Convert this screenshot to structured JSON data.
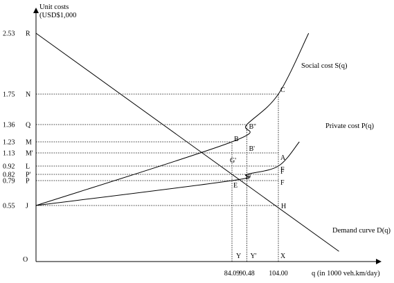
{
  "chart_data": {
    "type": "line",
    "title": "",
    "ylabel_line1": "Unit costs",
    "ylabel_line2": "(USD$1,000",
    "xlabel": "q (in 1000 veh.km/day)",
    "origin_label": "O",
    "ylim": [
      0,
      2.8
    ],
    "xlim": [
      0,
      130
    ],
    "x_ticks": [
      {
        "value": 84.09,
        "label": "84.09"
      },
      {
        "value": 90.48,
        "label": "90.48"
      },
      {
        "value": 104.0,
        "label": "104.00"
      }
    ],
    "y_ticks": [
      {
        "value": 2.53,
        "number": "2.53",
        "letter": "R"
      },
      {
        "value": 1.75,
        "number": "1.75",
        "letter": "N"
      },
      {
        "value": 1.36,
        "number": "1.36",
        "letter": "Q"
      },
      {
        "value": 1.23,
        "number": "1.23",
        "letter": "M"
      },
      {
        "value": 1.13,
        "number": "1.13",
        "letter": "M'"
      },
      {
        "value": 0.92,
        "number": "0.92",
        "letter": "L"
      },
      {
        "value": 0.82,
        "number": "0.82",
        "letter": "P'"
      },
      {
        "value": 0.79,
        "number": "0.79",
        "letter": "P"
      },
      {
        "value": 0.55,
        "number": "0.55",
        "letter": "J"
      }
    ],
    "series": [
      {
        "name": "Social cost S(q)",
        "kind": "convex",
        "q_start": 0,
        "y_start": 0.55,
        "q_end": 117,
        "y_end": 2.53,
        "points": [
          [
            84.09,
            1.23
          ],
          [
            90.48,
            1.36
          ],
          [
            104.0,
            1.75
          ]
        ]
      },
      {
        "name": "Private cost P(q)",
        "kind": "convex",
        "q_start": 0,
        "y_start": 0.55,
        "q_end": 113,
        "y_end": 1.23,
        "points": [
          [
            84.09,
            0.79
          ],
          [
            90.48,
            0.82
          ],
          [
            104.0,
            0.92
          ]
        ]
      },
      {
        "name": "Demand curve D(q)",
        "kind": "linear",
        "points": [
          [
            0,
            2.53
          ],
          [
            130,
            0.1
          ]
        ]
      }
    ],
    "point_labels": [
      {
        "label": "C",
        "x": 104.0,
        "y": 1.75
      },
      {
        "label": "B''",
        "x": 90.48,
        "y": 1.36
      },
      {
        "label": "B",
        "x": 84.09,
        "y": 1.23
      },
      {
        "label": "B'",
        "x": 90.48,
        "y": 1.13
      },
      {
        "label": "G'",
        "x": 84.09,
        "y": 1.13
      },
      {
        "label": "A",
        "x": 104.0,
        "y": 1.13
      },
      {
        "label": "F",
        "x": 104.0,
        "y": 0.92
      },
      {
        "label": "E'",
        "x": 90.48,
        "y": 0.82
      },
      {
        "label": "F",
        "x": 104.0,
        "y": 0.82
      },
      {
        "label": "E",
        "x": 84.09,
        "y": 0.79
      },
      {
        "label": "F",
        "x": 104.0,
        "y": 0.79
      },
      {
        "label": "H",
        "x": 104.0,
        "y": 0.55
      },
      {
        "label": "Y",
        "x": 84.09,
        "y": 0
      },
      {
        "label": "Y'",
        "x": 90.48,
        "y": 0
      },
      {
        "label": "X",
        "x": 104.0,
        "y": 0
      }
    ],
    "reference_lines": [
      {
        "from": [
          0,
          1.75
        ],
        "to": [
          104.0,
          1.75
        ]
      },
      {
        "from": [
          0,
          1.36
        ],
        "to": [
          90.48,
          1.36
        ]
      },
      {
        "from": [
          0,
          1.23
        ],
        "to": [
          84.09,
          1.23
        ]
      },
      {
        "from": [
          0,
          1.13
        ],
        "to": [
          104.0,
          1.13
        ]
      },
      {
        "from": [
          0,
          0.92
        ],
        "to": [
          104.0,
          0.92
        ]
      },
      {
        "from": [
          0,
          0.82
        ],
        "to": [
          104.0,
          0.82
        ]
      },
      {
        "from": [
          0,
          0.79
        ],
        "to": [
          104.0,
          0.79
        ]
      },
      {
        "from": [
          0,
          0.55
        ],
        "to": [
          104.0,
          0.55
        ]
      },
      {
        "from": [
          84.09,
          0
        ],
        "to": [
          84.09,
          1.23
        ]
      },
      {
        "from": [
          90.48,
          0
        ],
        "to": [
          90.48,
          1.36
        ]
      },
      {
        "from": [
          104.0,
          0
        ],
        "to": [
          104.0,
          1.75
        ]
      }
    ],
    "grid": false,
    "legend": "none"
  }
}
